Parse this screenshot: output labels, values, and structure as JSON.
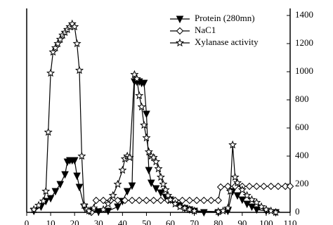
{
  "chart_data": {
    "type": "line",
    "xlim": [
      0,
      110
    ],
    "xticks": [
      0,
      10,
      20,
      30,
      40,
      50,
      60,
      70,
      80,
      90,
      100,
      110
    ],
    "ylim": [
      0,
      1450
    ],
    "yticks": [
      0,
      200,
      400,
      600,
      800,
      1000,
      1200,
      1400
    ],
    "legend": "top-right",
    "series": [
      {
        "name": "Protein (280mn)",
        "color": "#000000",
        "marker": "triangle-down",
        "x": [
          3,
          6,
          8,
          10,
          12,
          14,
          16,
          17,
          18,
          19,
          20,
          21,
          22,
          24,
          26,
          30,
          34,
          38,
          40,
          42,
          44,
          45,
          46,
          47,
          48,
          49,
          50,
          51,
          52,
          54,
          56,
          58,
          60,
          62,
          64,
          66,
          68,
          70,
          74,
          80,
          84,
          86,
          88,
          90,
          92,
          94,
          96,
          100,
          104
        ],
        "values": [
          10,
          40,
          80,
          100,
          150,
          200,
          270,
          360,
          370,
          370,
          370,
          260,
          180,
          40,
          10,
          5,
          10,
          40,
          80,
          150,
          190,
          930,
          930,
          930,
          920,
          920,
          700,
          300,
          210,
          170,
          140,
          110,
          90,
          70,
          50,
          30,
          20,
          10,
          0,
          0,
          10,
          150,
          120,
          90,
          60,
          40,
          20,
          10,
          0
        ]
      },
      {
        "name": "NaC1",
        "color": "#000000",
        "marker": "diamond",
        "x": [
          27,
          29,
          32,
          35,
          38,
          41,
          44,
          47,
          50,
          53,
          56,
          59,
          62,
          65,
          68,
          71,
          74,
          77,
          80,
          81,
          84,
          87,
          90,
          93,
          96,
          99,
          102,
          105,
          108,
          110
        ],
        "values": [
          0,
          85,
          85,
          85,
          85,
          85,
          85,
          85,
          85,
          85,
          85,
          85,
          85,
          85,
          85,
          85,
          85,
          85,
          85,
          180,
          185,
          185,
          185,
          185,
          185,
          185,
          185,
          185,
          185,
          185
        ]
      },
      {
        "name": "Xylanase activity",
        "color": "#000000",
        "marker": "star",
        "x": [
          3,
          5,
          7,
          8,
          9,
          10,
          11,
          12,
          13,
          14,
          15,
          16,
          17,
          18,
          19,
          20,
          21,
          22,
          23,
          24,
          25,
          26,
          28,
          32,
          34,
          36,
          38,
          40,
          41,
          42,
          43,
          45,
          46,
          47,
          48,
          49,
          50,
          51,
          52,
          53,
          54,
          55,
          56,
          57,
          58,
          59,
          60,
          62,
          64,
          66,
          68,
          70,
          80,
          82,
          84,
          85,
          86,
          87,
          88,
          90,
          92,
          94,
          96,
          98,
          100,
          102,
          104
        ],
        "values": [
          20,
          50,
          80,
          150,
          570,
          990,
          1140,
          1170,
          1200,
          1230,
          1260,
          1280,
          1300,
          1320,
          1340,
          1320,
          1200,
          1010,
          400,
          50,
          20,
          10,
          30,
          20,
          60,
          120,
          200,
          300,
          380,
          400,
          390,
          980,
          950,
          830,
          750,
          620,
          530,
          430,
          400,
          390,
          360,
          310,
          250,
          200,
          160,
          120,
          90,
          60,
          40,
          30,
          20,
          10,
          5,
          10,
          30,
          150,
          480,
          250,
          210,
          160,
          120,
          90,
          70,
          40,
          20,
          10,
          0
        ]
      }
    ]
  }
}
